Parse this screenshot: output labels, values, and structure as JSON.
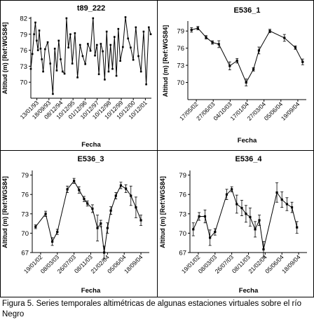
{
  "caption": "Figura 5. Series temporales altimétricas de algunas estaciones virtuales sobre el río Negro",
  "chart_data": [
    {
      "type": "line",
      "title": "t89_222",
      "xlabel": "Fecha",
      "ylabel": "Altitud (m) [Ref:WGS84]",
      "ylim": [
        67,
        82
      ],
      "yticks": [
        70,
        73,
        76,
        79,
        82
      ],
      "xticks": [
        "13/01/93",
        "18/09/93",
        "08/12/94",
        "10/12/95",
        "01/12/96",
        "10/12/97",
        "10/12/98",
        "10/12/99",
        "10/12/00",
        "10/12/01"
      ],
      "xlim": [
        0,
        9.3
      ],
      "error_bars": false,
      "x": [
        0.0,
        0.12,
        0.25,
        0.35,
        0.45,
        0.55,
        0.65,
        0.75,
        0.85,
        0.95,
        1.1,
        1.3,
        1.5,
        1.7,
        1.85,
        2.0,
        2.15,
        2.3,
        2.45,
        2.6,
        2.75,
        2.9,
        3.05,
        3.2,
        3.4,
        3.6,
        3.8,
        4.0,
        4.2,
        4.4,
        4.6,
        4.8,
        4.95,
        5.1,
        5.25,
        5.4,
        5.55,
        5.7,
        5.85,
        6.0,
        6.15,
        6.3,
        6.45,
        6.6,
        6.75,
        6.9,
        7.1,
        7.3,
        7.5,
        7.7,
        7.9,
        8.1,
        8.3,
        8.5,
        8.7,
        8.9,
        9.1,
        9.25
      ],
      "y": [
        72.5,
        75.3,
        79.0,
        81.2,
        77.8,
        76.0,
        79.7,
        76.3,
        74.3,
        72.0,
        76.2,
        77.5,
        73.5,
        67.8,
        76.3,
        72.2,
        77.8,
        74.3,
        72.0,
        71.6,
        82.0,
        76.5,
        79.0,
        73.5,
        79.2,
        70.9,
        77.0,
        74.9,
        73.4,
        77.2,
        75.9,
        82.0,
        75.0,
        77.0,
        71.5,
        77.2,
        75.8,
        70.5,
        79.5,
        72.0,
        77.0,
        72.5,
        78.5,
        71.2,
        80.0,
        74.0,
        76.6,
        82.2,
        78.2,
        76.5,
        74.2,
        80.3,
        74.9,
        72.0,
        79.5,
        69.6,
        80.3,
        79.0
      ]
    },
    {
      "type": "line",
      "title": "E536_1",
      "xlabel": "Fecha",
      "ylabel": "Altitud (m) [Ref:WGS84]",
      "ylim": [
        67,
        80.5
      ],
      "yticks": [
        70,
        73,
        76,
        79
      ],
      "xticks": [
        "17/05/02",
        "27/06/03",
        "04/10/03",
        "17/01/04",
        "27/03/04",
        "05/06/04",
        "19/09/04"
      ],
      "xlim": [
        0,
        6.5
      ],
      "error_bars": true,
      "x": [
        0.2,
        0.55,
        1.0,
        1.35,
        1.7,
        2.3,
        2.7,
        3.2,
        3.6,
        3.9,
        4.5,
        5.3,
        5.9,
        6.3
      ],
      "y": [
        79.2,
        79.5,
        77.9,
        77.0,
        76.7,
        72.9,
        73.8,
        70.0,
        72.3,
        75.6,
        79.0,
        77.8,
        76.1,
        73.6
      ],
      "err": [
        0.4,
        0.3,
        0.3,
        0.3,
        0.6,
        0.7,
        0.4,
        0.6,
        0.3,
        0.6,
        0.3,
        0.6,
        0.3,
        0.5
      ]
    },
    {
      "type": "line",
      "title": "E536_3",
      "xlabel": "Fecha",
      "ylabel": "Altitud (m) [Ref:WGS84]",
      "ylim": [
        67,
        79.5
      ],
      "yticks": [
        67,
        70,
        73,
        76,
        79
      ],
      "xticks": [
        "19/01/02",
        "08/03/03",
        "26/07/03",
        "08/11/03",
        "21/02/04",
        "05/06/04",
        "18/09/04"
      ],
      "xlim": [
        0,
        7
      ],
      "error_bars": true,
      "x": [
        0.2,
        0.8,
        1.2,
        1.5,
        2.1,
        2.5,
        2.8,
        3.1,
        3.3,
        3.6,
        3.9,
        4.1,
        4.3,
        4.5,
        4.7,
        5.0,
        5.3,
        5.6,
        5.9,
        6.2,
        6.5
      ],
      "y": [
        71.0,
        73.0,
        68.7,
        70.2,
        76.8,
        78.1,
        76.7,
        75.3,
        74.6,
        73.8,
        70.8,
        71.5,
        67.0,
        70.8,
        73.5,
        75.8,
        77.4,
        76.9,
        75.8,
        74.0,
        72.0
      ],
      "err": [
        0.3,
        0.4,
        0.6,
        0.4,
        0.5,
        0.4,
        0.5,
        0.4,
        0.4,
        0.6,
        2.0,
        0.5,
        1.0,
        0.8,
        0.6,
        0.5,
        0.5,
        0.6,
        1.5,
        1.6,
        0.8
      ]
    },
    {
      "type": "line",
      "title": "E536_4",
      "xlabel": "Fecha",
      "ylabel": "Altitud (m) [Ref:WGS84]",
      "ylim": [
        67,
        79.5
      ],
      "yticks": [
        67,
        70,
        73,
        76,
        79
      ],
      "xticks": [
        "19/01/02",
        "08/03/03",
        "26/07/03",
        "08/11/03",
        "21/02/04",
        "05/06/04",
        "18/09/04"
      ],
      "xlim": [
        0,
        7
      ],
      "error_bars": true,
      "x": [
        0.2,
        0.55,
        0.9,
        1.2,
        1.5,
        2.2,
        2.5,
        2.8,
        3.1,
        3.35,
        3.6,
        3.9,
        4.15,
        4.4,
        5.2,
        5.5,
        5.8,
        6.1,
        6.4
      ],
      "y": [
        70.6,
        72.6,
        72.6,
        69.3,
        70.2,
        76.0,
        76.8,
        74.5,
        73.9,
        73.0,
        72.5,
        70.6,
        72.0,
        67.5,
        76.3,
        75.2,
        74.5,
        74.0,
        70.9
      ],
      "err": [
        1.0,
        0.6,
        1.0,
        1.2,
        0.5,
        0.8,
        0.4,
        1.4,
        1.2,
        1.3,
        1.4,
        1.2,
        0.8,
        1.2,
        1.5,
        1.2,
        1.0,
        0.8,
        0.9
      ]
    }
  ]
}
